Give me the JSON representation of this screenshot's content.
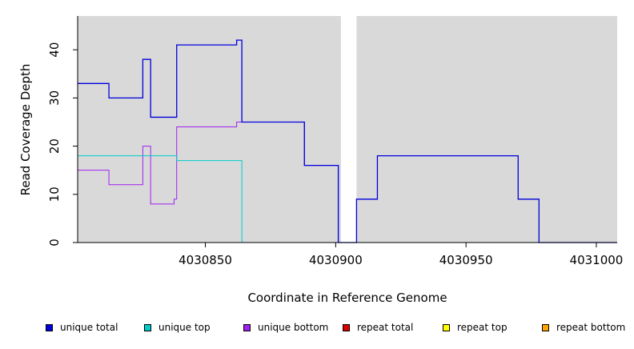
{
  "chart_data": {
    "type": "line",
    "step": true,
    "xlabel": "Coordinate in Reference Genome",
    "ylabel": "Read Coverage Depth",
    "xlim": [
      4030801,
      4031008
    ],
    "ylim": [
      0,
      47
    ],
    "x_ticks": [
      4030850,
      4030900,
      4030950,
      4031000
    ],
    "x_tick_labels": [
      "4030850",
      "4030900",
      "4030950",
      "4031000"
    ],
    "y_ticks": [
      0,
      10,
      20,
      30,
      40
    ],
    "y_tick_labels": [
      "0",
      "10",
      "20",
      "30",
      "40"
    ],
    "background": "#d9d9d9",
    "gap_region": [
      4030902,
      4030908
    ],
    "gap_color": "#ffffff",
    "legend_position": "bottom",
    "series": [
      {
        "name": "unique total",
        "color": "#0000dd",
        "x": [
          4030801,
          4030813,
          4030826,
          4030829,
          4030839,
          4030862,
          4030864,
          4030888,
          4030901,
          4030908,
          4030916,
          4030970,
          4030978,
          4031008
        ],
        "values": [
          33,
          30,
          38,
          26,
          41,
          42,
          25,
          16,
          0,
          9,
          18,
          9,
          0,
          0
        ]
      },
      {
        "name": "unique top",
        "color": "#00cccc",
        "x": [
          4030801,
          4030839,
          4030864,
          4030901
        ],
        "values": [
          18,
          17,
          0,
          0
        ]
      },
      {
        "name": "unique bottom",
        "color": "#a020f0",
        "x": [
          4030801,
          4030813,
          4030826,
          4030829,
          4030838,
          4030839,
          4030862,
          4030864,
          4030888,
          4030901
        ],
        "values": [
          15,
          12,
          20,
          8,
          9,
          24,
          25,
          25,
          16,
          0
        ]
      },
      {
        "name": "repeat total",
        "color": "#dd0000",
        "x": [
          4030801,
          4031008
        ],
        "values": [
          0,
          0
        ]
      },
      {
        "name": "repeat top",
        "color": "#ffff00",
        "x": [
          4030801,
          4031008
        ],
        "values": [
          0,
          0
        ]
      },
      {
        "name": "repeat bottom",
        "color": "#ffa500",
        "x": [
          4030801,
          4031008
        ],
        "values": [
          0,
          0
        ]
      }
    ]
  }
}
